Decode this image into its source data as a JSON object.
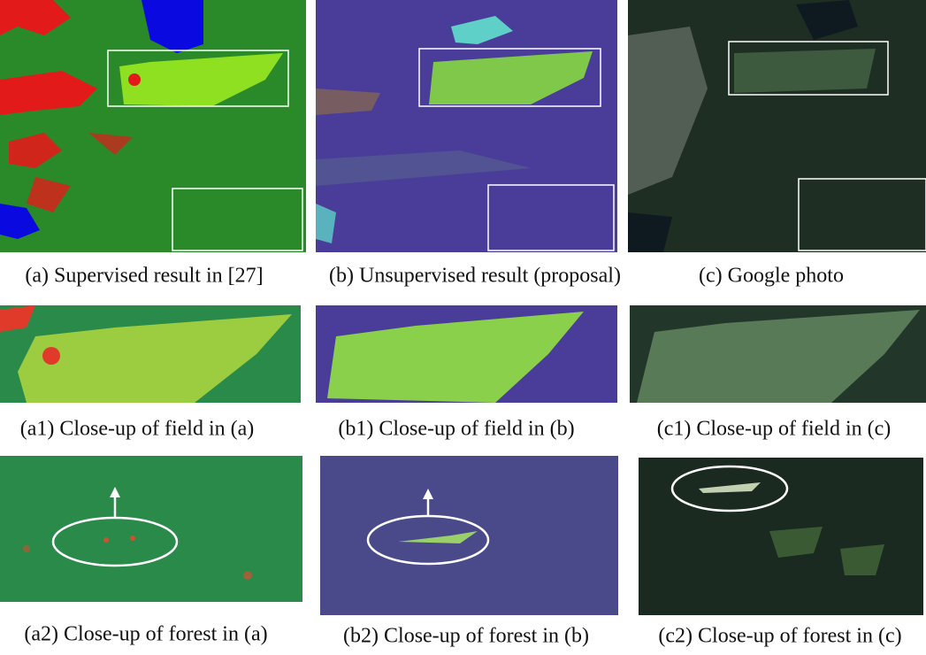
{
  "captions": [
    "(a) Supervised result in [27]",
    "(b) Unsupervised result (proposal)",
    "(c) Google photo",
    "(a1) Close-up of field in (a)",
    "(b1) Close-up of field in (b)",
    "(c1) Close-up of field in (c)",
    "(a2) Close-up of forest in (a)",
    "(b2) Close-up of forest in (b)",
    "(c2) Close-up of forest in (c)"
  ]
}
